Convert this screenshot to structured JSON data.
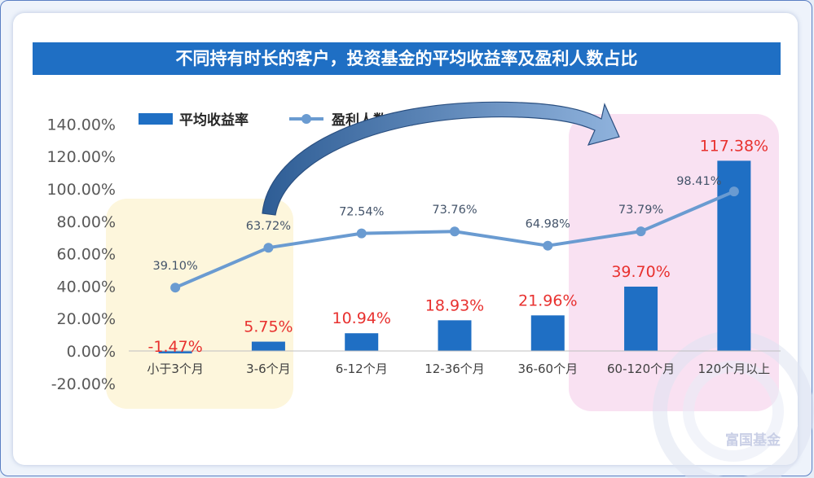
{
  "title": "不同持有时长的客户，投资基金的平均收益率及盈利人数占比",
  "watermark": "富国基金",
  "legend": [
    "平均收益率",
    "盈利人数占比"
  ],
  "colors": {
    "bar": "#1f6fc4",
    "line": "#6a9bd1",
    "bar_label": "#e8312f",
    "line_label": "#44546a",
    "title_bg": "#1f6fc4",
    "highlight_left": "#fdf6dc",
    "highlight_right": "#f9e1f2"
  },
  "chart_data": {
    "type": "bar",
    "categories": [
      "小于3个月",
      "3-6个月",
      "6-12个月",
      "12-36个月",
      "36-60个月",
      "60-120个月",
      "120个月以上"
    ],
    "series": [
      {
        "name": "平均收益率",
        "type": "bar",
        "values": [
          -1.47,
          5.75,
          10.94,
          18.93,
          21.96,
          39.7,
          117.38
        ],
        "labels": [
          "-1.47%",
          "5.75%",
          "10.94%",
          "18.93%",
          "21.96%",
          "39.70%",
          "117.38%"
        ]
      },
      {
        "name": "盈利人数占比",
        "type": "line",
        "values": [
          39.1,
          63.72,
          72.54,
          73.76,
          64.98,
          73.79,
          98.41
        ],
        "labels": [
          "39.10%",
          "63.72%",
          "72.54%",
          "73.76%",
          "64.98%",
          "73.79%",
          "98.41%"
        ]
      }
    ],
    "ylim": [
      -20,
      140
    ],
    "yticks": [
      "-20.00%",
      "0.00%",
      "20.00%",
      "40.00%",
      "60.00%",
      "80.00%",
      "100.00%",
      "120.00%",
      "140.00%"
    ],
    "ytick_values": [
      -20,
      0,
      20,
      40,
      60,
      80,
      100,
      120,
      140
    ],
    "grid": false,
    "legend_position": "top-left"
  }
}
